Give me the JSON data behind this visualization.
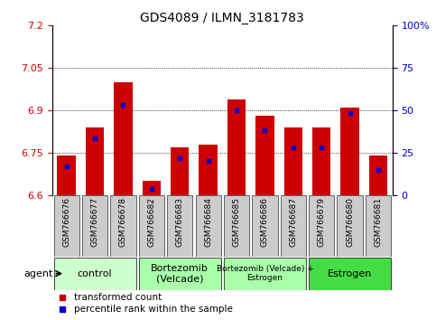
{
  "title": "GDS4089 / ILMN_3181783",
  "samples": [
    "GSM766676",
    "GSM766677",
    "GSM766678",
    "GSM766682",
    "GSM766683",
    "GSM766684",
    "GSM766685",
    "GSM766686",
    "GSM766687",
    "GSM766679",
    "GSM766680",
    "GSM766681"
  ],
  "bar_values": [
    6.74,
    6.84,
    7.0,
    6.65,
    6.77,
    6.78,
    6.94,
    6.88,
    6.84,
    6.84,
    6.91,
    6.74
  ],
  "percentile_values": [
    6.7,
    6.8,
    6.92,
    6.62,
    6.73,
    6.72,
    6.9,
    6.83,
    6.77,
    6.77,
    6.89,
    6.69
  ],
  "bar_bottom": 6.6,
  "ylim_left": [
    6.6,
    7.2
  ],
  "ylim_right": [
    0,
    100
  ],
  "yticks_left": [
    6.6,
    6.75,
    6.9,
    7.05,
    7.2
  ],
  "yticks_right": [
    0,
    25,
    50,
    75,
    100
  ],
  "ytick_labels_left": [
    "6.6",
    "6.75",
    "6.9",
    "7.05",
    "7.2"
  ],
  "ytick_labels_right": [
    "0",
    "25",
    "50",
    "75",
    "100%"
  ],
  "gridlines": [
    6.75,
    6.9,
    7.05
  ],
  "bar_color": "#cc0000",
  "percentile_color": "#0000cc",
  "left_tick_color": "#cc0000",
  "right_tick_color": "#0000cc",
  "groups_def": [
    {
      "start": 0,
      "end": 2,
      "label": "control",
      "color": "#ccffcc"
    },
    {
      "start": 3,
      "end": 5,
      "label": "Bortezomib\n(Velcade)",
      "color": "#aaffaa"
    },
    {
      "start": 6,
      "end": 8,
      "label": "Bortezomib (Velcade) +\nEstrogen",
      "color": "#aaffaa"
    },
    {
      "start": 9,
      "end": 11,
      "label": "Estrogen",
      "color": "#44dd44"
    }
  ],
  "legend_items": [
    {
      "label": "transformed count",
      "color": "#cc0000"
    },
    {
      "label": "percentile rank within the sample",
      "color": "#0000cc"
    }
  ],
  "sample_box_color": "#cccccc",
  "bar_width": 0.65,
  "tick_label_fontsize": 6.5,
  "title_fontsize": 10,
  "axis_tick_fontsize": 8
}
